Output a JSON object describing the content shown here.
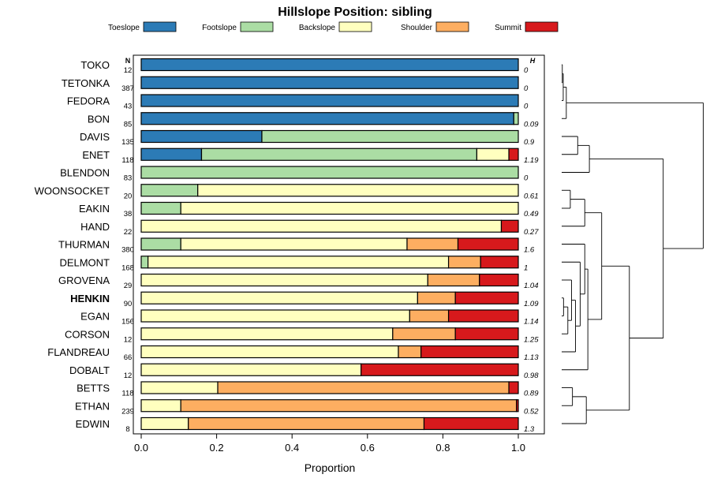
{
  "chart_data": {
    "type": "bar",
    "orientation": "horizontal",
    "stacked": true,
    "title": "Hillslope Position: sibling",
    "xlabel": "Proportion",
    "ylabel": "",
    "xlim": [
      0,
      1
    ],
    "x_ticks": [
      "0.0",
      "0.2",
      "0.4",
      "0.6",
      "0.8",
      "1.0"
    ],
    "n_header": "N",
    "h_header": "H",
    "highlight": "HENKIN",
    "legend_position": "top",
    "series": [
      {
        "name": "Toeslope",
        "color": "#2c7bb6"
      },
      {
        "name": "Footslope",
        "color": "#abdda4"
      },
      {
        "name": "Backslope",
        "color": "#ffffbf"
      },
      {
        "name": "Shoulder",
        "color": "#fdae61"
      },
      {
        "name": "Summit",
        "color": "#d7191c"
      }
    ],
    "rows": [
      {
        "label": "TOKO",
        "n": "12",
        "h": "0",
        "values": [
          1.0,
          0,
          0,
          0,
          0
        ]
      },
      {
        "label": "TETONKA",
        "n": "387",
        "h": "0",
        "values": [
          1.0,
          0,
          0,
          0,
          0
        ]
      },
      {
        "label": "FEDORA",
        "n": "43",
        "h": "0",
        "values": [
          1.0,
          0,
          0,
          0,
          0
        ]
      },
      {
        "label": "BON",
        "n": "85",
        "h": "0.09",
        "values": [
          0.988,
          0.012,
          0,
          0,
          0
        ]
      },
      {
        "label": "DAVIS",
        "n": "135",
        "h": "0.9",
        "values": [
          0.32,
          0.68,
          0,
          0,
          0
        ]
      },
      {
        "label": "ENET",
        "n": "118",
        "h": "1.19",
        "values": [
          0.16,
          0.73,
          0.085,
          0,
          0.025
        ]
      },
      {
        "label": "BLENDON",
        "n": "83",
        "h": "0",
        "values": [
          0,
          1.0,
          0,
          0,
          0
        ]
      },
      {
        "label": "WOONSOCKET",
        "n": "20",
        "h": "0.61",
        "values": [
          0,
          0.15,
          0.85,
          0,
          0
        ]
      },
      {
        "label": "EAKIN",
        "n": "38",
        "h": "0.49",
        "values": [
          0,
          0.105,
          0.895,
          0,
          0
        ]
      },
      {
        "label": "HAND",
        "n": "22",
        "h": "0.27",
        "values": [
          0,
          0,
          0.955,
          0,
          0.045
        ]
      },
      {
        "label": "THURMAN",
        "n": "380",
        "h": "1.6",
        "values": [
          0,
          0.105,
          0.6,
          0.135,
          0.16
        ]
      },
      {
        "label": "DELMONT",
        "n": "168",
        "h": "1",
        "values": [
          0,
          0.018,
          0.797,
          0.085,
          0.1
        ]
      },
      {
        "label": "GROVENA",
        "n": "29",
        "h": "1.04",
        "values": [
          0,
          0,
          0.76,
          0.137,
          0.103
        ]
      },
      {
        "label": "HENKIN",
        "n": "90",
        "h": "1.09",
        "values": [
          0,
          0,
          0.733,
          0.1,
          0.167
        ]
      },
      {
        "label": "EGAN",
        "n": "156",
        "h": "1.14",
        "values": [
          0,
          0,
          0.712,
          0.103,
          0.185
        ]
      },
      {
        "label": "CORSON",
        "n": "12",
        "h": "1.25",
        "values": [
          0,
          0,
          0.667,
          0.166,
          0.167
        ]
      },
      {
        "label": "FLANDREAU",
        "n": "66",
        "h": "1.13",
        "values": [
          0,
          0,
          0.682,
          0.06,
          0.258
        ]
      },
      {
        "label": "DOBALT",
        "n": "12",
        "h": "0.98",
        "values": [
          0,
          0,
          0.583,
          0,
          0.417
        ]
      },
      {
        "label": "BETTS",
        "n": "118",
        "h": "0.89",
        "values": [
          0,
          0,
          0.203,
          0.772,
          0.025
        ]
      },
      {
        "label": "ETHAN",
        "n": "239",
        "h": "0.52",
        "values": [
          0,
          0,
          0.105,
          0.89,
          0.005
        ]
      },
      {
        "label": "EDWIN",
        "n": "8",
        "h": "1.3",
        "values": [
          0,
          0,
          0.125,
          0.625,
          0.25
        ]
      }
    ],
    "dendrogram": [
      [
        0,
        1,
        0.02
      ],
      [
        21,
        2,
        0.05
      ],
      [
        3,
        22,
        0.15
      ],
      [
        4,
        5,
        0.52
      ],
      [
        24,
        6,
        0.9
      ],
      [
        7,
        8,
        0.28
      ],
      [
        9,
        26,
        0.75
      ],
      [
        13,
        14,
        0.06
      ],
      [
        15,
        28,
        0.2
      ],
      [
        12,
        29,
        0.32
      ],
      [
        16,
        30,
        0.45
      ],
      [
        11,
        31,
        0.6
      ],
      [
        10,
        32,
        0.75
      ],
      [
        33,
        17,
        0.85
      ],
      [
        27,
        34,
        1.3
      ],
      [
        18,
        19,
        0.35
      ],
      [
        36,
        20,
        0.8
      ],
      [
        35,
        37,
        2.2
      ],
      [
        25,
        38,
        3.3
      ],
      [
        23,
        39,
        4.6
      ]
    ]
  }
}
